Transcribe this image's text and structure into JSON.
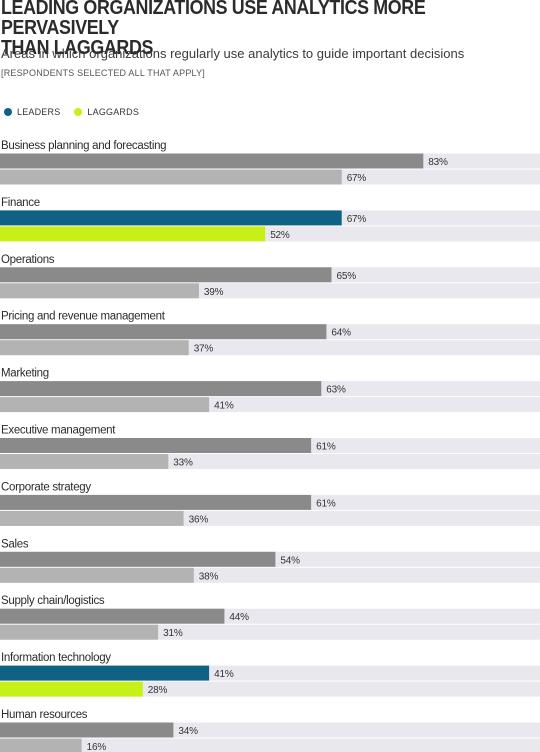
{
  "title_line1": "LEADING ORGANIZATIONS USE ANALYTICS MORE PERVASIVELY",
  "title_line2": "THAN LAGGARDS",
  "subtitle": "Areas in which organizations regularly use analytics to guide important decisions",
  "note": "[RESPONDENTS SELECTED ALL THAT APPLY]",
  "legend": [
    {
      "label": "LEADERS",
      "color": "#0f6283"
    },
    {
      "label": "LAGGARDS",
      "color": "#c6f118"
    }
  ],
  "colors": {
    "leaders_default": "#8a8a8a",
    "laggards_default": "#b3b3b3",
    "leaders_highlight": "#0f6283",
    "laggards_highlight": "#c6f118",
    "track": "#e8e8ee"
  },
  "chart_data": {
    "type": "bar",
    "orientation": "horizontal",
    "title": "LEADING ORGANIZATIONS USE ANALYTICS MORE PERVASIVELY THAN LAGGARDS",
    "subtitle": "Areas in which organizations regularly use analytics to guide important decisions",
    "xlim": [
      0,
      100
    ],
    "value_suffix": "%",
    "categories": [
      "Business planning and forecasting",
      "Finance",
      "Operations",
      "Pricing and revenue management",
      "Marketing",
      "Executive management",
      "Corporate strategy",
      "Sales",
      "Supply chain/logistics",
      "Information technology",
      "Human resources"
    ],
    "highlighted": [
      "Finance",
      "Information technology"
    ],
    "series": [
      {
        "name": "LEADERS",
        "values": [
          83,
          67,
          65,
          64,
          63,
          61,
          61,
          54,
          44,
          41,
          34
        ]
      },
      {
        "name": "LAGGARDS",
        "values": [
          67,
          52,
          39,
          37,
          41,
          33,
          36,
          38,
          31,
          28,
          16
        ]
      }
    ]
  }
}
